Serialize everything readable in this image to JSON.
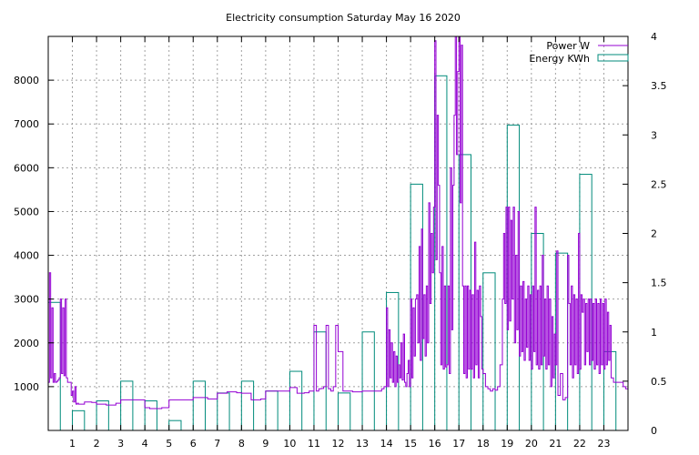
{
  "chart_data": {
    "type": "line",
    "title": "Electricity consumption Saturday May 16 2020",
    "xlabel": "",
    "ylabel": "",
    "y2label": "",
    "grid": true,
    "legend_position": "top-right",
    "x_ticks": [
      1,
      2,
      3,
      4,
      5,
      6,
      7,
      8,
      9,
      10,
      11,
      12,
      13,
      14,
      15,
      16,
      17,
      18,
      19,
      20,
      21,
      22,
      23
    ],
    "x_tick_labels": [
      "1",
      "2",
      "3",
      "4",
      "5",
      "6",
      "7",
      "8",
      "9",
      "10",
      "11",
      "12",
      "13",
      "14",
      "15",
      "16",
      "17",
      "18",
      "19",
      "20",
      "21",
      "22",
      "23"
    ],
    "xlim": [
      0,
      24
    ],
    "ylim": [
      0,
      9000
    ],
    "y2lim": [
      0,
      4
    ],
    "y_ticks": [
      1000,
      2000,
      3000,
      4000,
      5000,
      6000,
      7000,
      8000
    ],
    "y_tick_labels": [
      "1000",
      "2000",
      "3000",
      "4000",
      "5000",
      "6000",
      "7000",
      "8000"
    ],
    "y2_ticks": [
      0,
      0.5,
      1,
      1.5,
      2,
      2.5,
      3,
      3.5,
      4
    ],
    "y2_tick_labels": [
      "0",
      "0.5",
      "1",
      "1.5",
      "2",
      "2.5",
      "3",
      "3.5",
      "4"
    ],
    "series": [
      {
        "name": "Power W",
        "color": "#9400d3",
        "axis": "left",
        "style": "line",
        "x": [
          0.0,
          0.05,
          0.1,
          0.15,
          0.2,
          0.25,
          0.3,
          0.35,
          0.4,
          0.45,
          0.5,
          0.55,
          0.6,
          0.65,
          0.7,
          0.75,
          0.8,
          0.85,
          0.9,
          0.95,
          1.0,
          1.05,
          1.1,
          1.15,
          1.2,
          1.25,
          1.3,
          1.5,
          1.8,
          2.0,
          2.4,
          2.8,
          3.0,
          3.2,
          3.5,
          3.8,
          4.0,
          4.2,
          4.4,
          4.7,
          5.0,
          5.3,
          5.6,
          5.8,
          6.0,
          6.3,
          6.6,
          7.0,
          7.4,
          7.8,
          8.0,
          8.4,
          8.8,
          9.0,
          9.5,
          10.0,
          10.3,
          10.6,
          10.8,
          11.0,
          11.1,
          11.2,
          11.3,
          11.4,
          11.5,
          11.6,
          11.7,
          11.8,
          11.9,
          12.0,
          12.2,
          12.6,
          13.0,
          13.5,
          13.8,
          13.9,
          14.0,
          14.05,
          14.1,
          14.15,
          14.2,
          14.25,
          14.3,
          14.35,
          14.4,
          14.45,
          14.5,
          14.55,
          14.6,
          14.65,
          14.7,
          14.75,
          14.8,
          14.85,
          14.9,
          14.95,
          15.0,
          15.05,
          15.1,
          15.15,
          15.2,
          15.25,
          15.3,
          15.35,
          15.4,
          15.45,
          15.5,
          15.55,
          15.6,
          15.65,
          15.7,
          15.75,
          15.8,
          15.85,
          15.9,
          15.95,
          16.0,
          16.05,
          16.1,
          16.15,
          16.2,
          16.25,
          16.3,
          16.35,
          16.4,
          16.45,
          16.5,
          16.55,
          16.6,
          16.65,
          16.7,
          16.75,
          16.8,
          16.85,
          16.9,
          16.95,
          17.0,
          17.05,
          17.1,
          17.15,
          17.2,
          17.25,
          17.3,
          17.35,
          17.4,
          17.45,
          17.5,
          17.55,
          17.6,
          17.65,
          17.7,
          17.75,
          17.8,
          17.85,
          17.9,
          17.95,
          18.0,
          18.1,
          18.2,
          18.3,
          18.4,
          18.5,
          18.6,
          18.7,
          18.8,
          18.85,
          18.9,
          18.95,
          19.0,
          19.05,
          19.1,
          19.15,
          19.2,
          19.25,
          19.3,
          19.35,
          19.4,
          19.45,
          19.5,
          19.55,
          19.6,
          19.65,
          19.7,
          19.75,
          19.8,
          19.85,
          19.9,
          19.95,
          20.0,
          20.05,
          20.1,
          20.15,
          20.2,
          20.25,
          20.3,
          20.35,
          20.4,
          20.45,
          20.5,
          20.55,
          20.6,
          20.65,
          20.7,
          20.75,
          20.8,
          20.85,
          20.9,
          20.95,
          21.0,
          21.05,
          21.1,
          21.2,
          21.3,
          21.4,
          21.5,
          21.55,
          21.6,
          21.65,
          21.7,
          21.75,
          21.8,
          21.85,
          21.9,
          21.95,
          22.0,
          22.05,
          22.1,
          22.15,
          22.2,
          22.25,
          22.3,
          22.35,
          22.4,
          22.45,
          22.5,
          22.55,
          22.6,
          22.65,
          22.7,
          22.75,
          22.8,
          22.85,
          22.9,
          22.95,
          23.0,
          23.05,
          23.1,
          23.15,
          23.2,
          23.25,
          23.3,
          23.4,
          23.6,
          23.8,
          23.9,
          24.0
        ],
        "values": [
          1100,
          3600,
          1200,
          2800,
          1100,
          1300,
          1100,
          1120,
          1150,
          1200,
          3000,
          1300,
          2800,
          1250,
          3000,
          1200,
          1100,
          1100,
          1100,
          800,
          900,
          650,
          1000,
          600,
          620,
          600,
          600,
          650,
          640,
          600,
          580,
          620,
          700,
          700,
          700,
          700,
          520,
          500,
          500,
          520,
          700,
          700,
          700,
          700,
          750,
          750,
          720,
          850,
          880,
          860,
          850,
          700,
          720,
          900,
          900,
          980,
          850,
          860,
          900,
          2400,
          900,
          950,
          960,
          1000,
          2400,
          950,
          900,
          1000,
          2400,
          1800,
          900,
          880,
          900,
          900,
          950,
          1000,
          2800,
          1000,
          2300,
          1200,
          2000,
          1100,
          1800,
          1000,
          1700,
          1100,
          1500,
          1200,
          2000,
          1150,
          2200,
          1100,
          1000,
          1300,
          1600,
          1000,
          3000,
          1200,
          2800,
          1700,
          3000,
          3100,
          2000,
          4200,
          1600,
          4600,
          2100,
          3100,
          1700,
          3300,
          2000,
          5200,
          2900,
          4500,
          3600,
          5100,
          8900,
          3900,
          7200,
          5600,
          3600,
          1500,
          4200,
          1400,
          3300,
          1450,
          1500,
          3300,
          1300,
          6000,
          2300,
          5600,
          7200,
          9000,
          6300,
          8200,
          9000,
          5200,
          8800,
          3300,
          1300,
          3300,
          1200,
          3300,
          1400,
          3200,
          1400,
          3100,
          1200,
          4300,
          1500,
          3200,
          1200,
          3300,
          2600,
          1400,
          1300,
          1000,
          950,
          900,
          950,
          920,
          1000,
          1500,
          3000,
          4500,
          2900,
          5100,
          2300,
          5100,
          2500,
          4800,
          3000,
          5100,
          2000,
          4000,
          2300,
          5000,
          1700,
          3300,
          1800,
          3400,
          1600,
          3000,
          1900,
          3300,
          1600,
          3100,
          1400,
          3300,
          1800,
          5100,
          1500,
          3200,
          1400,
          3300,
          1500,
          4000,
          1700,
          3000,
          1400,
          3300,
          1500,
          3000,
          1000,
          2600,
          1200,
          2200,
          1500,
          4100,
          800,
          1300,
          700,
          750,
          4000,
          2900,
          1500,
          3300,
          1200,
          3100,
          1500,
          3000,
          1300,
          4500,
          1400,
          3100,
          2700,
          3000,
          1500,
          2900,
          1800,
          3000,
          1500,
          3000,
          1600,
          2900,
          1400,
          3000,
          1500,
          2900,
          1300,
          3000,
          1500,
          2900,
          1400,
          3000,
          1500,
          2700,
          1600,
          2400,
          1200,
          1100,
          1100,
          1000,
          950,
          950
        ]
      },
      {
        "name": "Energy KWh",
        "color": "#008b7b",
        "axis": "right",
        "style": "bars",
        "x": [
          0,
          1,
          2,
          3,
          4,
          5,
          6,
          7,
          8,
          9,
          10,
          11,
          12,
          13,
          14,
          15,
          16,
          17,
          18,
          19,
          20,
          21,
          22,
          23
        ],
        "values": [
          1.3,
          0.2,
          0.3,
          0.5,
          0.3,
          0.1,
          0.5,
          0.38,
          0.5,
          0.4,
          0.6,
          1.0,
          0.38,
          1.0,
          1.4,
          2.5,
          3.6,
          2.8,
          1.6,
          3.1,
          2.0,
          1.8,
          2.6,
          0.8
        ]
      }
    ]
  }
}
